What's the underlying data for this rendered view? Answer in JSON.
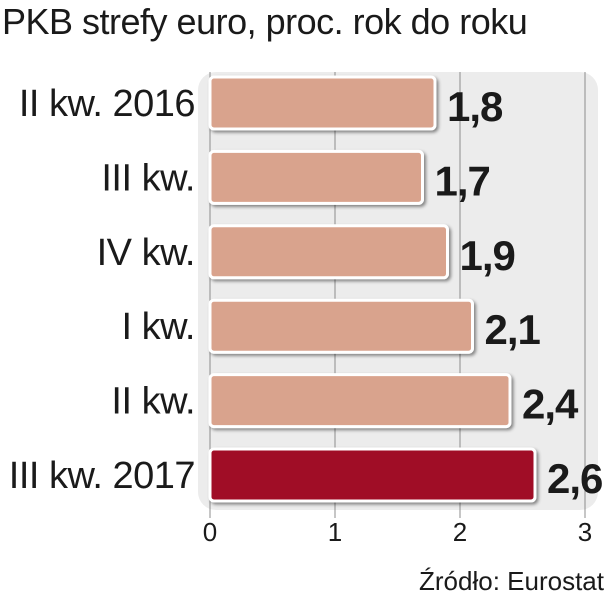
{
  "chart_data": {
    "type": "bar",
    "orientation": "horizontal",
    "title": "PKB strefy euro, proc. rok do roku",
    "categories": [
      "II kw. 2016",
      "III kw.",
      "IV kw.",
      "I kw.",
      "II kw.",
      "III kw. 2017"
    ],
    "values": [
      1.8,
      1.7,
      1.9,
      2.1,
      2.4,
      2.6
    ],
    "value_labels": [
      "1,8",
      "1,7",
      "1,9",
      "2,1",
      "2,4",
      "2,6"
    ],
    "xlim": [
      0,
      3
    ],
    "x_ticks": [
      "0",
      "1",
      "2",
      "3"
    ],
    "grid": true,
    "colors": {
      "bar": "#d9a38d",
      "highlight_bar": "#a00d28",
      "bar_outline": "#ffffff",
      "panel": "#ececec",
      "grid": "#8c8c8c"
    },
    "highlight_index": 5
  },
  "source": "Źródło: Eurostat"
}
